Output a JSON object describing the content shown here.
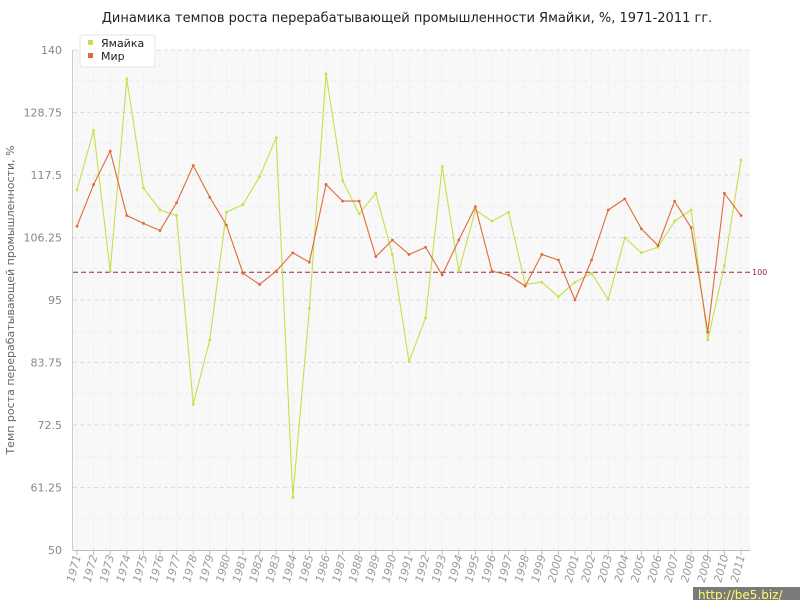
{
  "chart_data": {
    "type": "line",
    "title": "Динамика темпов роста перерабатывающей промышленности Ямайки, %, 1971-2011 гг.",
    "xlabel": "",
    "ylabel": "Темп роста перерабатывающей промышленности, %",
    "ylim": [
      50,
      140
    ],
    "yticks": [
      "50",
      "61.25",
      "72.5",
      "83.75",
      "95",
      "106.25",
      "117.5",
      "128.75",
      "140"
    ],
    "categories": [
      "1971",
      "1972",
      "1973",
      "1974",
      "1975",
      "1976",
      "1977",
      "1978",
      "1979",
      "1980",
      "1981",
      "1982",
      "1983",
      "1984",
      "1985",
      "1986",
      "1987",
      "1988",
      "1989",
      "1990",
      "1991",
      "1992",
      "1993",
      "1994",
      "1995",
      "1996",
      "1997",
      "1998",
      "1999",
      "2000",
      "2001",
      "2002",
      "2003",
      "2004",
      "2005",
      "2006",
      "2007",
      "2008",
      "2009",
      "2010",
      "2011"
    ],
    "series": [
      {
        "name": "Ямайка",
        "color": "#c5e04a",
        "values": [
          114.8,
          125.5,
          100.2,
          134.8,
          115.2,
          111.2,
          110.2,
          76.2,
          87.8,
          110.8,
          112.2,
          117.2,
          124.2,
          59.5,
          93.5,
          135.7,
          116.5,
          110.5,
          114.2,
          103.2,
          83.9,
          91.8,
          119.0,
          100.2,
          111.2,
          109.2,
          110.8,
          97.8,
          98.2,
          95.6,
          98.2,
          99.8,
          95.1,
          106.2,
          103.5,
          104.5,
          109.2,
          111.2,
          87.8,
          101.2,
          120.2
        ]
      },
      {
        "name": "Мир",
        "color": "#e06a3a",
        "values": [
          108.3,
          115.8,
          121.8,
          110.2,
          108.8,
          107.5,
          112.5,
          119.2,
          113.5,
          108.5,
          99.8,
          97.8,
          100.2,
          103.5,
          101.8,
          115.8,
          112.8,
          112.8,
          102.8,
          105.8,
          103.2,
          104.5,
          99.5,
          105.8,
          111.8,
          100.2,
          99.5,
          97.5,
          103.2,
          102.2,
          95.0,
          102.2,
          111.2,
          113.2,
          107.8,
          104.8,
          112.8,
          108.0,
          89.2,
          114.2,
          110.2
        ]
      }
    ],
    "reference_line": {
      "value": 100,
      "label": "100",
      "color": "#9a2a35"
    },
    "legend": {
      "position": "top-left"
    },
    "grid": true
  },
  "watermark": "http://be5.biz/"
}
